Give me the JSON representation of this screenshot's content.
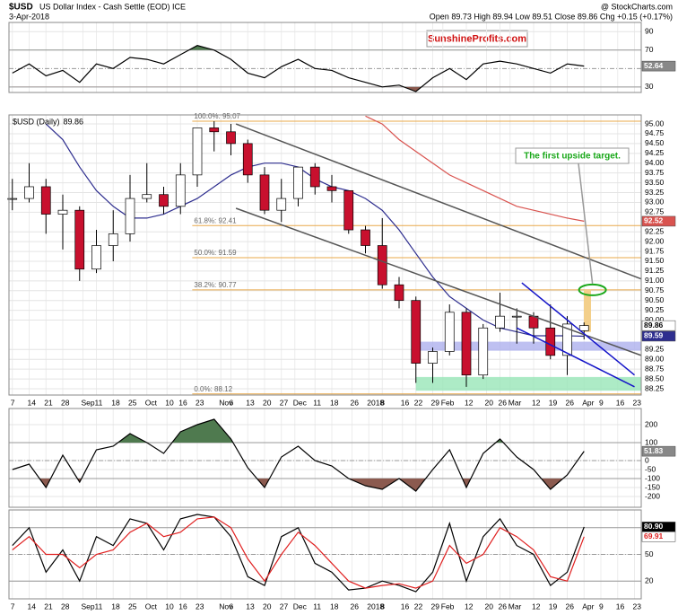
{
  "header": {
    "symbol": "$USD",
    "description": "US Dollar Index - Cash Settle (EOD) ICE",
    "source": "@ StockCharts.com",
    "date": "3-Apr-2018",
    "quote": "Open 89.73 High 89.94 Low 89.51 Close 89.86 Chg +0.15 (+0.17%)",
    "watermark": "SunshineProfits.com"
  },
  "chart_data": [
    {
      "type": "line",
      "x": [
        0,
        1,
        2,
        3,
        4,
        5,
        6,
        7,
        8,
        9,
        10,
        11,
        12,
        13,
        14,
        15,
        16,
        17,
        18,
        19,
        20,
        21,
        22,
        23,
        24,
        25,
        26,
        27,
        28,
        29,
        30,
        31,
        32,
        33,
        34
      ],
      "series": [
        {
          "color": "#000000",
          "values": [
            45,
            55,
            42,
            48,
            35,
            55,
            50,
            62,
            60,
            55,
            65,
            75,
            70,
            60,
            45,
            40,
            52,
            60,
            50,
            48,
            40,
            35,
            30,
            32,
            25,
            40,
            50,
            38,
            55,
            58,
            55,
            50,
            45,
            55,
            52.64
          ]
        }
      ],
      "xlim": [
        -0.2,
        37.4
      ],
      "ylim": [
        24,
        100
      ],
      "yticks": [
        30,
        70,
        90
      ],
      "reference_lines": [
        30,
        50,
        70
      ],
      "fill_above": {
        "level": 70,
        "color": "#4f7a4f"
      },
      "fill_below": {
        "level": 30,
        "color": "#8b5a4f"
      }
    },
    {
      "type": "candlestick",
      "name": "$USD (Daily)",
      "x": [
        0,
        1,
        2,
        3,
        4,
        5,
        6,
        7,
        8,
        9,
        10,
        11,
        12,
        13,
        14,
        15,
        16,
        17,
        18,
        19,
        20,
        21,
        22,
        23,
        24,
        25,
        26,
        27,
        28,
        29,
        30,
        31,
        32,
        33,
        34
      ],
      "open": [
        93.1,
        93.1,
        93.4,
        92.7,
        92.8,
        91.3,
        91.9,
        92.2,
        93.1,
        93.2,
        92.9,
        93.7,
        94.9,
        94.8,
        94.5,
        93.7,
        92.8,
        93.1,
        93.9,
        93.4,
        93.3,
        92.3,
        91.9,
        90.9,
        90.5,
        88.9,
        89.2,
        90.2,
        88.6,
        89.8,
        90.1,
        90.1,
        89.8,
        89.1,
        89.73
      ],
      "high": [
        93.6,
        94.0,
        93.6,
        93.2,
        92.9,
        92.3,
        92.8,
        93.7,
        94.0,
        93.4,
        94.0,
        94.9,
        95.07,
        95.0,
        94.6,
        93.9,
        93.6,
        93.9,
        94.0,
        93.7,
        93.3,
        92.4,
        92.6,
        91.1,
        90.6,
        89.3,
        90.4,
        90.3,
        89.9,
        90.7,
        90.3,
        90.2,
        90.4,
        90.1,
        89.94
      ],
      "low": [
        92.8,
        93.0,
        92.2,
        91.8,
        91.0,
        91.2,
        91.5,
        92.0,
        93.0,
        92.7,
        92.7,
        93.4,
        94.3,
        94.2,
        93.5,
        92.7,
        92.5,
        92.9,
        93.2,
        93.0,
        92.2,
        91.7,
        90.8,
        90.3,
        88.4,
        88.4,
        89.1,
        88.3,
        88.5,
        89.7,
        89.4,
        89.4,
        89.0,
        88.6,
        89.51
      ],
      "close": [
        93.1,
        93.4,
        92.7,
        92.8,
        91.3,
        91.9,
        92.2,
        93.1,
        93.2,
        92.9,
        93.7,
        94.9,
        94.8,
        94.5,
        93.7,
        92.8,
        93.1,
        93.9,
        93.4,
        93.3,
        92.3,
        91.9,
        90.9,
        90.5,
        88.9,
        89.2,
        90.2,
        88.6,
        89.8,
        90.1,
        90.1,
        89.8,
        89.1,
        89.9,
        89.86
      ],
      "up_color": "#ffffff",
      "down_color": "#c8102e",
      "series": [
        {
          "color": "#2e2e8f",
          "values": [
            null,
            null,
            95.0,
            94.6,
            93.9,
            93.3,
            92.9,
            92.6,
            92.6,
            92.7,
            92.9,
            93.1,
            93.4,
            93.7,
            93.9,
            94.0,
            94.0,
            93.9,
            93.6,
            93.4,
            93.3,
            93.1,
            92.8,
            92.3,
            91.7,
            91.1,
            90.6,
            90.3,
            90.0,
            89.8,
            89.7,
            89.6,
            89.6,
            89.6,
            89.59
          ]
        },
        {
          "color": "#d9534f",
          "values": [
            null,
            null,
            null,
            null,
            null,
            null,
            null,
            null,
            null,
            null,
            null,
            null,
            null,
            null,
            null,
            null,
            null,
            null,
            null,
            null,
            null,
            95.2,
            95.0,
            94.6,
            94.3,
            94.0,
            93.7,
            93.5,
            93.3,
            93.1,
            92.9,
            92.8,
            92.7,
            92.6,
            92.52
          ]
        }
      ],
      "xlim": [
        -0.2,
        37.4
      ],
      "ylim": [
        88.09,
        95.23
      ],
      "yticks": [
        {
          "value": 95,
          "label": "95.00"
        },
        94.75,
        {
          "value": 94.5,
          "label": "94.50"
        },
        94.25,
        {
          "value": 94,
          "label": "94.00"
        },
        93.75,
        {
          "value": 93.5,
          "label": "93.50"
        },
        93.25,
        {
          "value": 93,
          "label": "93.00"
        },
        92.75,
        92.25,
        {
          "value": 92,
          "label": "92.00"
        },
        91.75,
        {
          "value": 91.5,
          "label": "91.50"
        },
        91.25,
        {
          "value": 91,
          "label": "91.00"
        },
        90.75,
        {
          "value": 90.5,
          "label": "90.50"
        },
        90.25,
        {
          "value": 90,
          "label": "90.00"
        },
        89.25,
        {
          "value": 89,
          "label": "89.00"
        },
        88.75,
        {
          "value": 88.5,
          "label": "88.50"
        },
        88.25
      ],
      "xticks": [
        {
          "value": 0,
          "label": "7"
        },
        {
          "value": 1,
          "label": "14"
        },
        {
          "value": 2,
          "label": "21"
        },
        {
          "value": 3,
          "label": "28"
        },
        {
          "value": 4.2,
          "label": "Sep"
        },
        {
          "value": 5,
          "label": "11"
        },
        {
          "value": 6,
          "label": "18"
        },
        {
          "value": 7,
          "label": "25"
        },
        {
          "value": 8,
          "label": "Oct"
        },
        {
          "value": 9.2,
          "label": "10"
        },
        {
          "value": 10,
          "label": "16"
        },
        {
          "value": 11,
          "label": "23"
        },
        {
          "value": 12.4,
          "label": "Nov"
        },
        {
          "value": 13,
          "label": "6"
        },
        {
          "value": 14,
          "label": "13"
        },
        {
          "value": 15,
          "label": "20"
        },
        {
          "value": 16,
          "label": "27"
        },
        {
          "value": 16.8,
          "label": "Dec"
        },
        {
          "value": 18,
          "label": "11"
        },
        {
          "value": 19,
          "label": "18"
        },
        {
          "value": 20.2,
          "label": "26"
        },
        {
          "value": 21.2,
          "label": "2018"
        },
        {
          "value": 22,
          "label": "8"
        },
        {
          "value": 23.2,
          "label": "16"
        },
        {
          "value": 24,
          "label": "22"
        },
        {
          "value": 25,
          "label": "29"
        },
        {
          "value": 25.6,
          "label": "Feb"
        },
        {
          "value": 27,
          "label": "12"
        },
        {
          "value": 28.2,
          "label": "20"
        },
        {
          "value": 29,
          "label": "26"
        },
        {
          "value": 29.6,
          "label": "Mar"
        },
        {
          "value": 31,
          "label": "12"
        },
        {
          "value": 32,
          "label": "19"
        },
        {
          "value": 33,
          "label": "26"
        },
        {
          "value": 34,
          "label": "Apr"
        },
        {
          "value": 35,
          "label": "9"
        },
        {
          "value": 36,
          "label": "16"
        },
        {
          "value": 37,
          "label": "23"
        }
      ],
      "fib": [
        {
          "label": "100.0%: 95.07",
          "value": 95.07
        },
        {
          "label": "61.8%: 92.41",
          "value": 92.41
        },
        {
          "label": "50.0%: 91.59",
          "value": 91.59
        },
        {
          "label": "38.2%: 90.77",
          "value": 90.77
        },
        {
          "label": "0.0%: 88.12",
          "value": 88.12
        }
      ],
      "fib_color": "#e8a84a",
      "zones": [
        {
          "color": "#aeb0ee",
          "x": [
            24,
            37.4
          ],
          "y": [
            89.22,
            89.45
          ]
        },
        {
          "color": "#98e6b8",
          "x": [
            24,
            37.4
          ],
          "y": [
            88.2,
            88.55
          ]
        }
      ],
      "trendlines": [
        {
          "color": "#555555",
          "points": [
            [
              13.3,
              95.0
            ],
            [
              37.4,
              91.05
            ]
          ]
        },
        {
          "color": "#555555",
          "points": [
            [
              13.3,
              92.85
            ],
            [
              37.4,
              89.1
            ]
          ]
        },
        {
          "color": "#1414c8",
          "points": [
            [
              30.3,
              90.95
            ],
            [
              37,
              88.6
            ]
          ]
        },
        {
          "color": "#1414c8",
          "points": [
            [
              30,
              89.8
            ],
            [
              37,
              88.3
            ]
          ]
        }
      ],
      "target_bar": {
        "color": "#f3cf8a",
        "x": 34.2,
        "y": [
          89.7,
          90.77
        ]
      },
      "target": {
        "color": "#1aa81a",
        "x": 34.5,
        "y": 90.77
      },
      "annotation": "The first upside target."
    },
    {
      "type": "line",
      "x": [
        0,
        1,
        2,
        3,
        4,
        5,
        6,
        7,
        8,
        9,
        10,
        11,
        12,
        13,
        14,
        15,
        16,
        17,
        18,
        19,
        20,
        21,
        22,
        23,
        24,
        25,
        26,
        27,
        28,
        29,
        30,
        31,
        32,
        33,
        34
      ],
      "series": [
        {
          "color": "#000000",
          "values": [
            -50,
            -20,
            -150,
            30,
            -120,
            60,
            80,
            150,
            100,
            40,
            160,
            200,
            230,
            120,
            -40,
            -150,
            20,
            80,
            0,
            -30,
            -100,
            -140,
            -160,
            -100,
            -170,
            -50,
            60,
            -150,
            40,
            120,
            20,
            -50,
            -160,
            -80,
            51.83
          ]
        }
      ],
      "xlim": [
        -0.2,
        37.4
      ],
      "ylim": [
        -260,
        290
      ],
      "yticks": [
        -200,
        -150,
        -100,
        -50,
        0,
        100,
        200
      ],
      "reference_lines": [
        -100,
        0,
        100
      ],
      "fill_above": {
        "level": 100,
        "color": "#4f7a4f"
      },
      "fill_below": {
        "level": -100,
        "color": "#8b5a4f"
      }
    },
    {
      "type": "line",
      "x": [
        0,
        1,
        2,
        3,
        4,
        5,
        6,
        7,
        8,
        9,
        10,
        11,
        12,
        13,
        14,
        15,
        16,
        17,
        18,
        19,
        20,
        21,
        22,
        23,
        24,
        25,
        26,
        27,
        28,
        29,
        30,
        31,
        32,
        33,
        34
      ],
      "series": [
        {
          "color": "#000000",
          "values": [
            60,
            80,
            30,
            55,
            20,
            70,
            60,
            90,
            85,
            55,
            90,
            95,
            92,
            70,
            25,
            15,
            70,
            80,
            40,
            30,
            10,
            12,
            20,
            15,
            8,
            30,
            85,
            20,
            70,
            90,
            60,
            50,
            15,
            30,
            80.9
          ],
          "value_labels": [
            null,
            null,
            null,
            null,
            null,
            null,
            null,
            null,
            null,
            null,
            null,
            null,
            null,
            null,
            null,
            null,
            null,
            null,
            null,
            null,
            null,
            null,
            null,
            null,
            null,
            null,
            null,
            null,
            null,
            null,
            null,
            null,
            null,
            null,
            "80.90"
          ]
        },
        {
          "color": "#e02020",
          "values": [
            55,
            70,
            50,
            50,
            35,
            50,
            55,
            75,
            85,
            70,
            75,
            90,
            92,
            80,
            45,
            20,
            50,
            75,
            60,
            40,
            20,
            12,
            15,
            17,
            12,
            20,
            60,
            40,
            50,
            80,
            70,
            55,
            25,
            20,
            69.91
          ]
        }
      ],
      "xlim": [
        -0.2,
        37.4
      ],
      "ylim": [
        0,
        100
      ],
      "yticks": [
        20,
        50
      ],
      "reference_lines": [
        20,
        50,
        80
      ],
      "xticks": [
        {
          "value": 0,
          "label": "7"
        },
        {
          "value": 1,
          "label": "14"
        },
        {
          "value": 2,
          "label": "21"
        },
        {
          "value": 3,
          "label": "28"
        },
        {
          "value": 4.2,
          "label": "Sep"
        },
        {
          "value": 5,
          "label": "11"
        },
        {
          "value": 6,
          "label": "18"
        },
        {
          "value": 7,
          "label": "25"
        },
        {
          "value": 8,
          "label": "Oct"
        },
        {
          "value": 9.2,
          "label": "10"
        },
        {
          "value": 10,
          "label": "16"
        },
        {
          "value": 11,
          "label": "23"
        },
        {
          "value": 12.4,
          "label": "Nov"
        },
        {
          "value": 13,
          "label": "6"
        },
        {
          "value": 14,
          "label": "13"
        },
        {
          "value": 15,
          "label": "20"
        },
        {
          "value": 16,
          "label": "27"
        },
        {
          "value": 16.8,
          "label": "Dec"
        },
        {
          "value": 18,
          "label": "11"
        },
        {
          "value": 19,
          "label": "18"
        },
        {
          "value": 20.2,
          "label": "26"
        },
        {
          "value": 21.2,
          "label": "2018"
        },
        {
          "value": 22,
          "label": "8"
        },
        {
          "value": 23.2,
          "label": "16"
        },
        {
          "value": 24,
          "label": "22"
        },
        {
          "value": 25,
          "label": "29"
        },
        {
          "value": 25.6,
          "label": "Feb"
        },
        {
          "value": 27,
          "label": "12"
        },
        {
          "value": 28.2,
          "label": "20"
        },
        {
          "value": 29,
          "label": "26"
        },
        {
          "value": 29.6,
          "label": "Mar"
        },
        {
          "value": 31,
          "label": "12"
        },
        {
          "value": 32,
          "label": "19"
        },
        {
          "value": 33,
          "label": "26"
        },
        {
          "value": 34,
          "label": "Apr"
        },
        {
          "value": 35,
          "label": "9"
        },
        {
          "value": 36,
          "label": "16"
        },
        {
          "value": 37,
          "label": "23"
        }
      ]
    }
  ]
}
